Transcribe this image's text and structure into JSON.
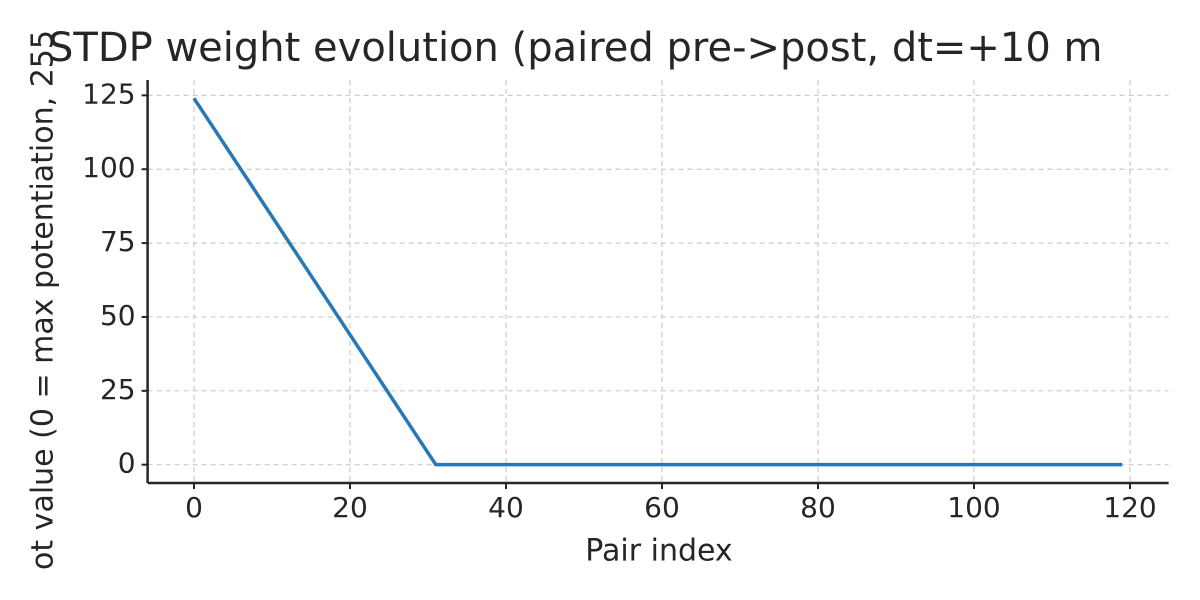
{
  "chart_data": {
    "type": "line",
    "title": "STDP weight evolution (paired pre->post, dt=+10 m",
    "xlabel": "Pair index",
    "ylabel": "ot value (0 = max potentiation, 255",
    "x": [
      0,
      31,
      119
    ],
    "series": [
      {
        "color": "#2878b5",
        "values": [
          124,
          0,
          0
        ]
      }
    ],
    "xlim": [
      -5.95,
      124.95
    ],
    "xticks": [
      0,
      20,
      40,
      60,
      80,
      100,
      120
    ],
    "ylim": [
      -6.2,
      130.2
    ],
    "yticks": [
      0,
      25,
      50,
      75,
      100,
      125
    ],
    "grid": true
  }
}
